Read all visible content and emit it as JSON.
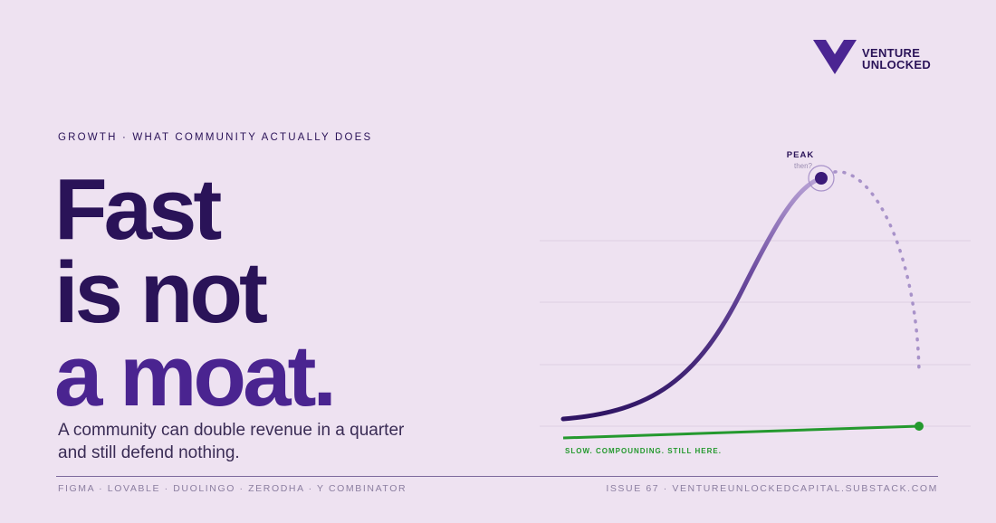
{
  "logo": {
    "line1": "VENTURE",
    "line2": "UNLOCKED"
  },
  "eyebrow": "GROWTH · WHAT COMMUNITY ACTUALLY DOES",
  "headline": {
    "lines": [
      "Fast",
      "is not",
      "a moat."
    ]
  },
  "subhead": {
    "lines": [
      "A community can double revenue in a quarter",
      "and still defend nothing."
    ]
  },
  "illustration": {
    "peak_label": "PEAK",
    "peak_note": "then?",
    "slow_label": "SLOW. COMPOUNDING. STILL HERE."
  },
  "footer": {
    "left": "FIGMA · LOVABLE · DUOLINGO · ZERODHA · Y COMBINATOR",
    "right": "ISSUE 67 · VENTUREUNLOCKEDCAPITAL.SUBSTACK.COM"
  }
}
